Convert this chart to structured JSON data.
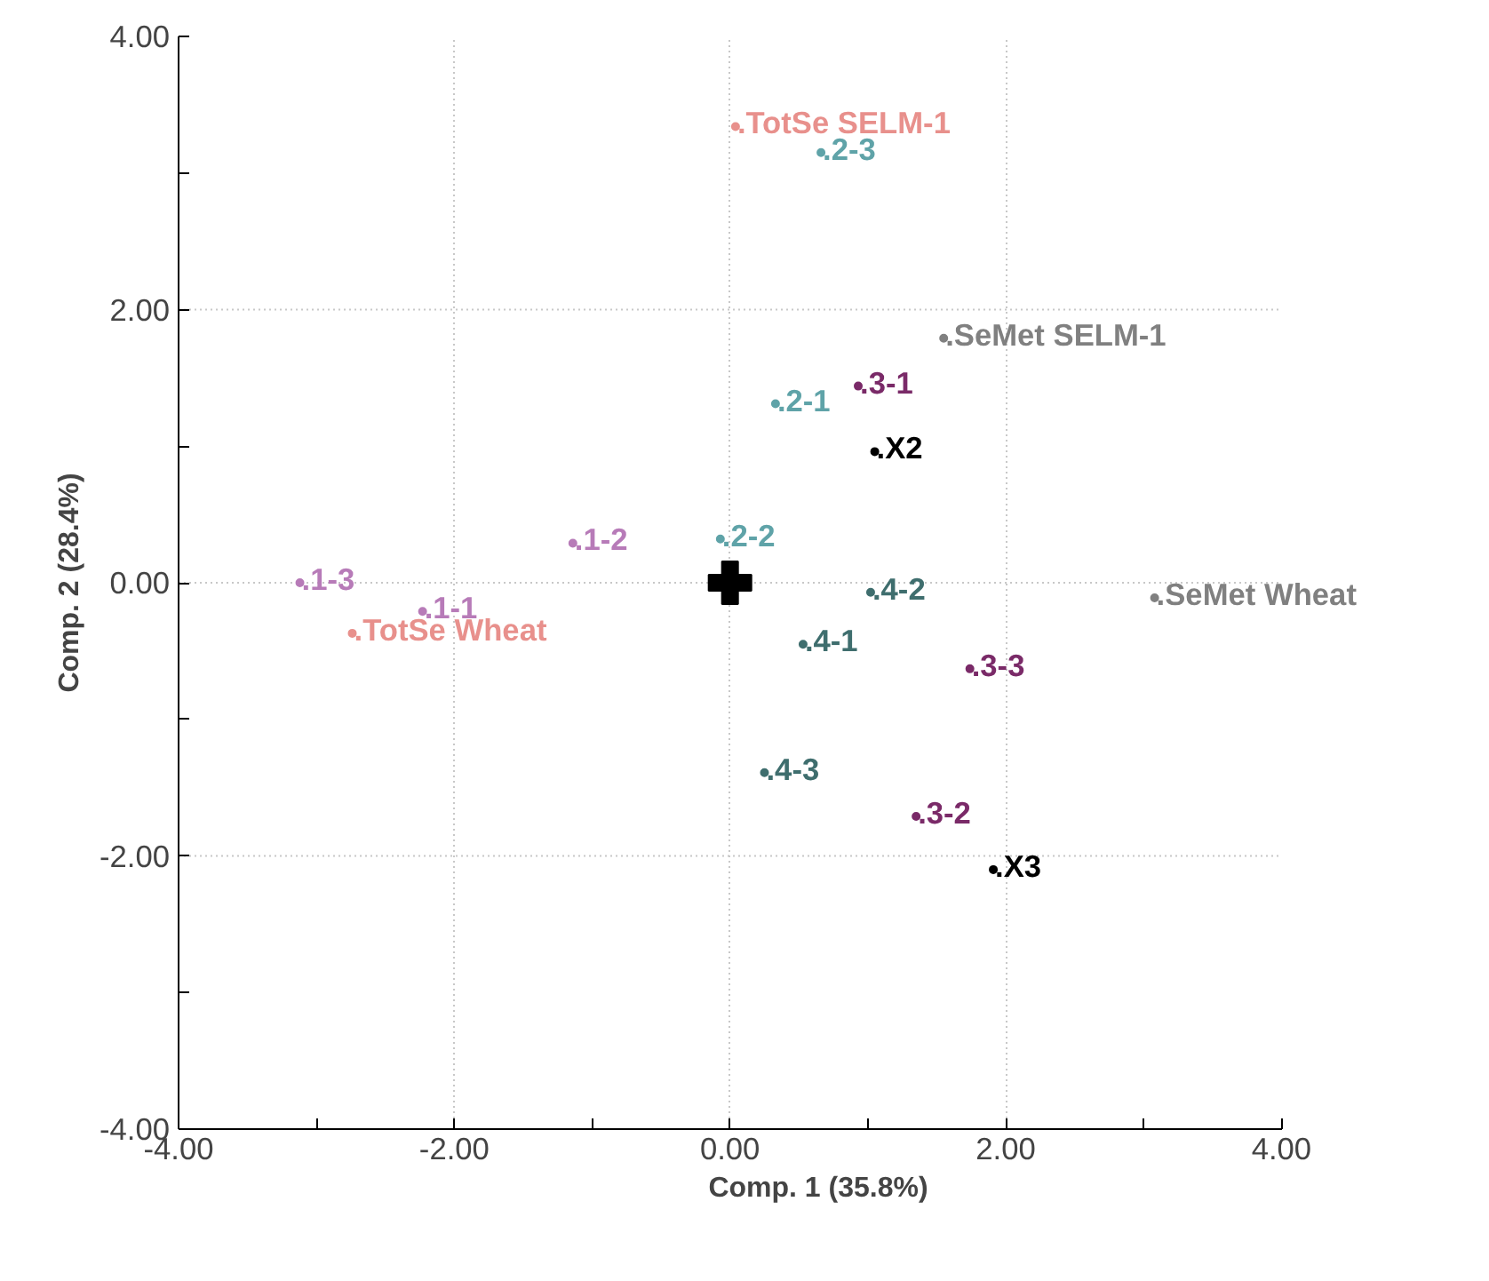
{
  "chart_data": {
    "type": "scatter",
    "xlabel": "Comp. 1 (35.8%)",
    "ylabel": "Comp. 2 (28.4%)",
    "xlim": [
      -4,
      4
    ],
    "ylim": [
      -4,
      4
    ],
    "xticks": [
      {
        "value": -4,
        "label": "-4.00"
      },
      {
        "value": -3,
        "label": null
      },
      {
        "value": -2,
        "label": "-2.00"
      },
      {
        "value": -1,
        "label": null
      },
      {
        "value": 0,
        "label": "0.00"
      },
      {
        "value": 1,
        "label": null
      },
      {
        "value": 2,
        "label": "2.00"
      },
      {
        "value": 3,
        "label": null
      },
      {
        "value": 4,
        "label": "4.00"
      }
    ],
    "yticks": [
      {
        "value": -4,
        "label": "-4.00"
      },
      {
        "value": -3,
        "label": null
      },
      {
        "value": -2,
        "label": "-2.00"
      },
      {
        "value": -1,
        "label": null
      },
      {
        "value": 0,
        "label": "0.00"
      },
      {
        "value": 1,
        "label": null
      },
      {
        "value": 2,
        "label": "2.00"
      },
      {
        "value": 3,
        "label": null
      },
      {
        "value": 4,
        "label": "4.00"
      }
    ],
    "grid": true,
    "marker": "circle",
    "series": [
      {
        "color": "#e8908c",
        "x": [
          0.04,
          -2.74
        ],
        "values": [
          3.34,
          -0.37
        ],
        "value_labels": [
          ".TotSe SELM-1",
          ".TotSe Wheat"
        ]
      },
      {
        "color": "#808080",
        "x": [
          1.55,
          3.08
        ],
        "values": [
          1.79,
          -0.11
        ],
        "value_labels": [
          ".SeMet SELM-1",
          ".SeMet Wheat"
        ]
      },
      {
        "color": "#b77bb8",
        "x": [
          -2.23,
          -1.14,
          -3.12
        ],
        "values": [
          -0.21,
          0.29,
          0.0
        ],
        "value_labels": [
          ".1-1",
          ".1-2",
          ".1-3"
        ]
      },
      {
        "color": "#5fa3a8",
        "x": [
          0.33,
          -0.07,
          0.66
        ],
        "values": [
          1.31,
          0.32,
          3.15
        ],
        "value_labels": [
          ".2-1",
          ".2-2",
          ".2-3"
        ]
      },
      {
        "color": "#7a2a68",
        "x": [
          0.93,
          1.35,
          1.74
        ],
        "values": [
          1.44,
          -1.71,
          -0.63
        ],
        "value_labels": [
          ".3-1",
          ".3-2",
          ".3-3"
        ]
      },
      {
        "color": "#3f6e6e",
        "x": [
          0.53,
          1.02,
          0.25
        ],
        "values": [
          -0.45,
          -0.07,
          -1.39
        ],
        "value_labels": [
          ".4-1",
          ".4-2",
          ".4-3"
        ]
      },
      {
        "color": "#000000",
        "x": [
          1.05,
          1.91
        ],
        "values": [
          0.96,
          -2.1
        ],
        "value_labels": [
          ".X2",
          ".X3"
        ]
      },
      {
        "color": "#000000",
        "x": [
          0
        ],
        "values": [
          0
        ],
        "marker": "cross"
      }
    ]
  }
}
